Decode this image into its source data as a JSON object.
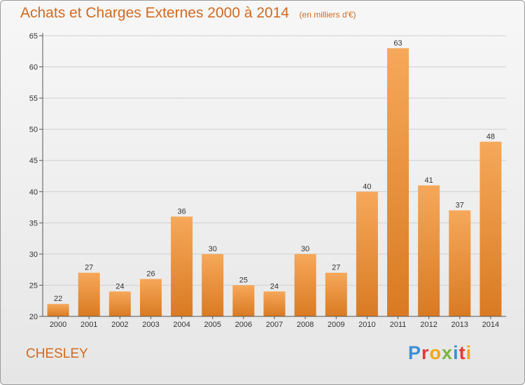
{
  "header": {
    "title": "Achats et Charges Externes 2000 à 2014",
    "unit": "(en milliers d'€)"
  },
  "footer": {
    "commune": "CHESLEY",
    "logo": "Proxiti",
    "logo_colors": [
      "#3a8fd8",
      "#e53935",
      "#f0a818",
      "#7cb342",
      "#3a8fd8",
      "#e53935",
      "#f0a818"
    ]
  },
  "colors": {
    "bar_top": "#f6a85a",
    "bar_bottom": "#d97a22",
    "text_accent": "#d2691e",
    "axis": "#555555",
    "grid": "#cfcfcf"
  },
  "chart_data": {
    "type": "bar",
    "title": "Achats et Charges Externes 2000 à 2014",
    "xlabel": "",
    "ylabel": "",
    "categories": [
      "2000",
      "2001",
      "2002",
      "2003",
      "2004",
      "2005",
      "2006",
      "2007",
      "2008",
      "2009",
      "2010",
      "2011",
      "2012",
      "2013",
      "2014"
    ],
    "values": [
      22,
      27,
      24,
      26,
      36,
      30,
      25,
      24,
      30,
      27,
      40,
      63,
      41,
      37,
      48
    ],
    "ylim": [
      20,
      65
    ],
    "yticks": [
      20,
      25,
      30,
      35,
      40,
      45,
      50,
      55,
      60,
      65
    ],
    "grid": true
  }
}
